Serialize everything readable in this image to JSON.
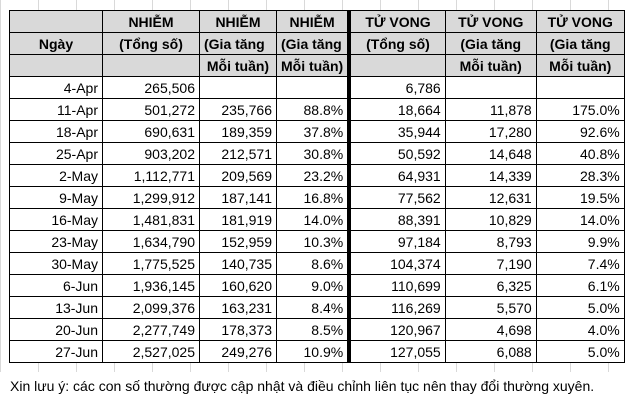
{
  "headers": {
    "row1": [
      "",
      "NHIỄM",
      "NHIỄM",
      "NHIỄM",
      "TỬ VONG",
      "TỬ VONG",
      "TỬ VONG"
    ],
    "row2": [
      "Ngày",
      "(Tổng số)",
      "(Gia tăng",
      "(Gia tăng",
      "(Tổng số)",
      "(Gia tăng",
      "(Gia tăng"
    ],
    "row3": [
      "",
      "",
      "Mỗi tuần)",
      "Mỗi tuần)",
      "",
      "Mỗi tuần)",
      "Mỗi tuần)"
    ]
  },
  "rows": [
    [
      "4-Apr",
      "265,506",
      "",
      "",
      "6,786",
      "",
      ""
    ],
    [
      "11-Apr",
      "501,272",
      "235,766",
      "88.8%",
      "18,664",
      "11,878",
      "175.0%"
    ],
    [
      "18-Apr",
      "690,631",
      "189,359",
      "37.8%",
      "35,944",
      "17,280",
      "92.6%"
    ],
    [
      "25-Apr",
      "903,202",
      "212,571",
      "30.8%",
      "50,592",
      "14,648",
      "40.8%"
    ],
    [
      "2-May",
      "1,112,771",
      "209,569",
      "23.2%",
      "64,931",
      "14,339",
      "28.3%"
    ],
    [
      "9-May",
      "1,299,912",
      "187,141",
      "16.8%",
      "77,562",
      "12,631",
      "19.5%"
    ],
    [
      "16-May",
      "1,481,831",
      "181,919",
      "14.0%",
      "88,391",
      "10,829",
      "14.0%"
    ],
    [
      "23-May",
      "1,634,790",
      "152,959",
      "10.3%",
      "97,184",
      "8,793",
      "9.9%"
    ],
    [
      "30-May",
      "1,775,525",
      "140,735",
      "8.6%",
      "104,374",
      "7,190",
      "7.4%"
    ],
    [
      "6-Jun",
      "1,936,145",
      "160,620",
      "9.0%",
      "110,699",
      "6,325",
      "6.1%"
    ],
    [
      "13-Jun",
      "2,099,376",
      "163,231",
      "8.4%",
      "116,269",
      "5,570",
      "5.0%"
    ],
    [
      "20-Jun",
      "2,277,749",
      "178,373",
      "8.5%",
      "120,967",
      "4,698",
      "4.0%"
    ],
    [
      "27-Jun",
      "2,527,025",
      "249,276",
      "10.9%",
      "127,055",
      "6,088",
      "5.0%"
    ]
  ],
  "note": "Xin lưu ý: các con số thường được cập nhật và điều chỉnh liên tục nên thay đổi thường xuyên."
}
